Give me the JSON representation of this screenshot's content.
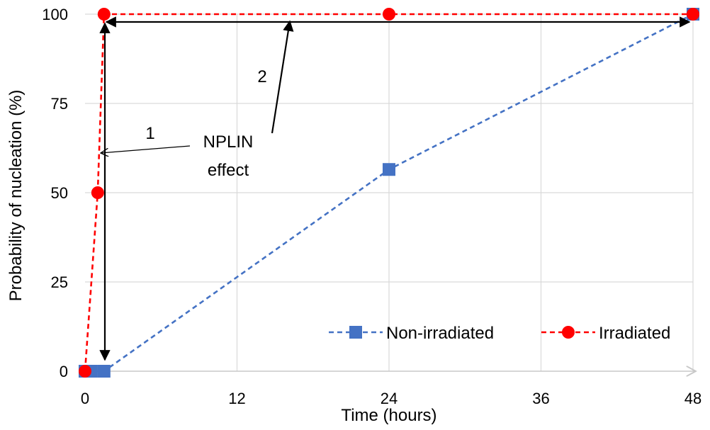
{
  "chart_data": {
    "type": "line",
    "xlabel": "Time (hours)",
    "ylabel": "Probability of nucleation (%)",
    "xlim": [
      0,
      48
    ],
    "ylim": [
      0,
      100
    ],
    "xticks": [
      0,
      12,
      24,
      36,
      48
    ],
    "yticks": [
      0,
      25,
      50,
      75,
      100
    ],
    "grid": true,
    "legend_position": "bottom-right",
    "series": [
      {
        "name": "Non-irradiated",
        "color": "#4472C4",
        "marker": "square",
        "line_style": "dashed",
        "x": [
          0,
          0.5,
          1.5,
          24,
          48
        ],
        "y": [
          0,
          0,
          0,
          56.5,
          100
        ]
      },
      {
        "name": "Irradiated",
        "color": "#FF0000",
        "marker": "circle",
        "line_style": "dashed",
        "x": [
          0,
          1,
          1.5,
          24,
          48
        ],
        "y": [
          0,
          50,
          100,
          100,
          100
        ]
      }
    ],
    "annotations": {
      "label_1": "1",
      "label_2": "2",
      "effect_line1": "NPLIN",
      "effect_line2": "effect"
    }
  }
}
